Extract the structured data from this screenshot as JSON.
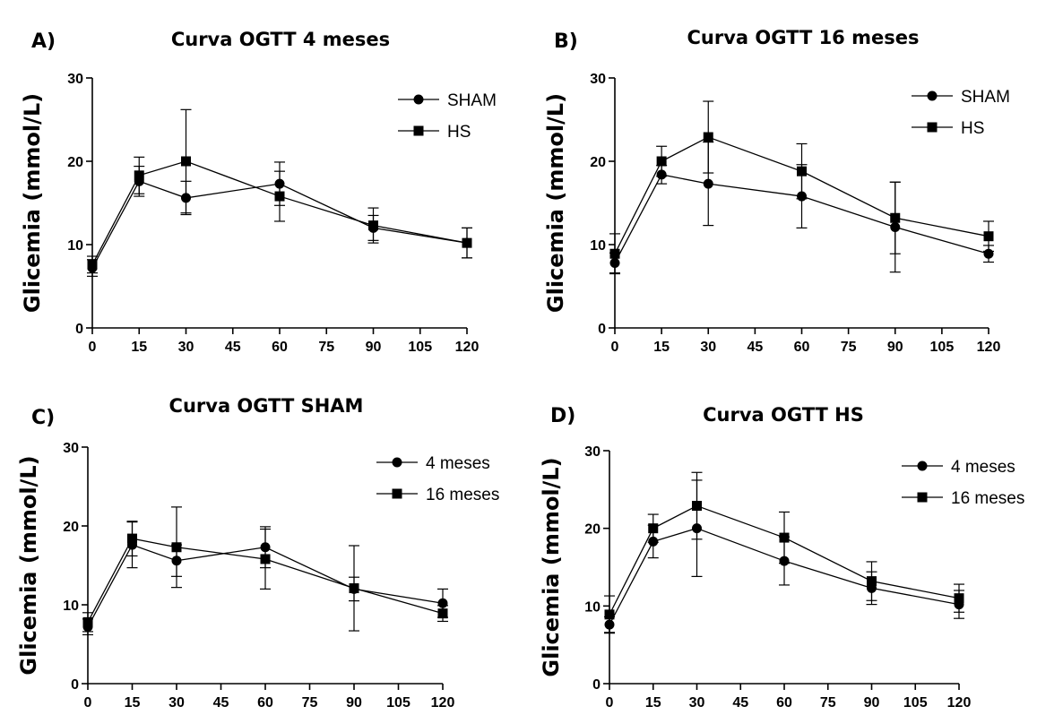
{
  "chart_data": [
    {
      "type": "line",
      "panel": "A)",
      "title": "Curva OGTT 4 meses",
      "xlabel": "",
      "ylabel": "Glicemia (mmol/L)",
      "x": [
        0,
        15,
        30,
        60,
        90,
        120
      ],
      "xticks": [
        0,
        15,
        30,
        45,
        60,
        75,
        90,
        105,
        120
      ],
      "yticks": [
        0,
        10,
        20,
        30
      ],
      "xlim": [
        0,
        120
      ],
      "ylim": [
        0,
        30
      ],
      "legend_position": "top-right",
      "series": [
        {
          "name": "SHAM",
          "marker": "circle",
          "values": [
            7.2,
            17.6,
            15.6,
            17.3,
            12.0,
            10.2
          ],
          "error": [
            1.0,
            1.8,
            2.0,
            2.6,
            1.5,
            1.8
          ]
        },
        {
          "name": "HS",
          "marker": "square",
          "values": [
            7.6,
            18.3,
            20.0,
            15.8,
            12.3,
            10.2
          ],
          "error": [
            1.0,
            2.2,
            6.2,
            3.0,
            2.1,
            1.8
          ]
        }
      ]
    },
    {
      "type": "line",
      "panel": "B)",
      "title": "Curva OGTT 16 meses",
      "xlabel": "",
      "ylabel": "Glicemia (mmol/L)",
      "x": [
        0,
        15,
        30,
        60,
        90,
        120
      ],
      "xticks": [
        0,
        15,
        30,
        45,
        60,
        75,
        90,
        105,
        120
      ],
      "yticks": [
        0,
        10,
        20,
        30
      ],
      "xlim": [
        0,
        120
      ],
      "ylim": [
        0,
        30
      ],
      "legend_position": "top-right",
      "series": [
        {
          "name": "SHAM",
          "marker": "circle",
          "values": [
            7.8,
            18.4,
            17.3,
            15.8,
            12.1,
            8.9
          ],
          "error": [
            1.2,
            1.1,
            5.0,
            3.8,
            5.4,
            1.0
          ]
        },
        {
          "name": "HS",
          "marker": "square",
          "values": [
            8.9,
            20.0,
            22.9,
            18.8,
            13.2,
            11.0
          ],
          "error": [
            2.4,
            1.8,
            4.3,
            3.3,
            4.3,
            1.8
          ]
        }
      ]
    },
    {
      "type": "line",
      "panel": "C)",
      "title": "Curva OGTT SHAM",
      "xlabel": "",
      "ylabel": "Glicemia (mmol/L)",
      "x": [
        0,
        15,
        30,
        60,
        90,
        120
      ],
      "xticks": [
        0,
        15,
        30,
        45,
        60,
        75,
        90,
        105,
        120
      ],
      "yticks": [
        0,
        10,
        20,
        30
      ],
      "xlim": [
        0,
        120
      ],
      "ylim": [
        0,
        30
      ],
      "legend_position": "top-right",
      "series": [
        {
          "name": "4 meses",
          "marker": "circle",
          "values": [
            7.2,
            17.6,
            15.6,
            17.3,
            12.0,
            10.2
          ],
          "error": [
            1.0,
            2.9,
            2.0,
            2.6,
            1.5,
            1.8
          ]
        },
        {
          "name": "16 meses",
          "marker": "square",
          "values": [
            7.8,
            18.4,
            17.3,
            15.8,
            12.1,
            8.9
          ],
          "error": [
            1.2,
            2.2,
            5.1,
            3.8,
            5.4,
            1.0
          ]
        }
      ]
    },
    {
      "type": "line",
      "panel": "D)",
      "title": "Curva OGTT HS",
      "xlabel": "",
      "ylabel": "Glicemia (mmol/L)",
      "x": [
        0,
        15,
        30,
        60,
        90,
        120
      ],
      "xticks": [
        0,
        15,
        30,
        45,
        60,
        75,
        90,
        105,
        120
      ],
      "yticks": [
        0,
        10,
        20,
        30
      ],
      "xlim": [
        0,
        120
      ],
      "ylim": [
        0,
        30
      ],
      "legend_position": "top-right",
      "series": [
        {
          "name": "4 meses",
          "marker": "circle",
          "values": [
            7.6,
            18.3,
            20.0,
            15.8,
            12.3,
            10.2
          ],
          "error": [
            1.0,
            2.1,
            6.2,
            3.1,
            2.1,
            1.8
          ]
        },
        {
          "name": "16 meses",
          "marker": "square",
          "values": [
            8.9,
            20.0,
            22.9,
            18.8,
            13.2,
            11.0
          ],
          "error": [
            2.4,
            1.8,
            4.3,
            3.3,
            2.5,
            1.8
          ]
        }
      ]
    }
  ]
}
